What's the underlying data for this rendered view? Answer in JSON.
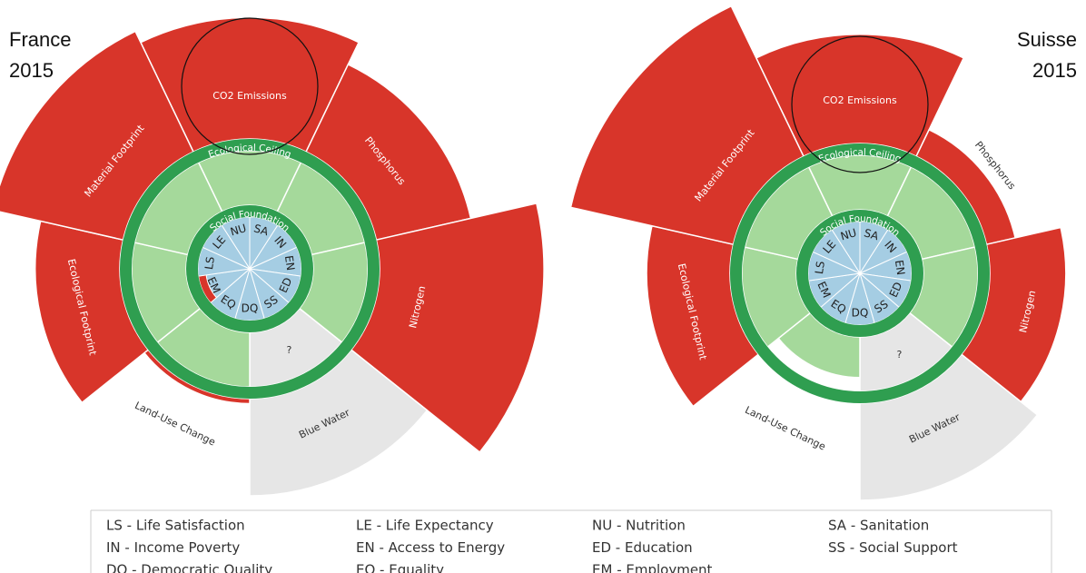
{
  "chart_data": [
    {
      "type": "doughnut",
      "title": "France",
      "subtitle": "2015",
      "ceiling_label": "Ecological Ceiling",
      "foundation_label": "Social Foundation",
      "null_label": "?",
      "ecological": {
        "categories": [
          "CO2 Emissions",
          "Phosphorus",
          "Nitrogen",
          "Blue Water",
          "Land-Use Change",
          "Ecological Footprint",
          "Material Footprint"
        ],
        "values": [
          2.05,
          1.85,
          2.4,
          null,
          1.1,
          1.75,
          2.15
        ]
      },
      "social": {
        "categories": [
          "NU",
          "SA",
          "IN",
          "EN",
          "ED",
          "SS",
          "DQ",
          "EQ",
          "EM",
          "LS",
          "LE"
        ],
        "values": [
          1,
          1,
          1,
          1,
          1,
          1,
          1,
          1,
          0.85,
          1,
          1
        ]
      },
      "colors": {
        "overshoot": "#d8352a",
        "safe": "#a5d99b",
        "ring": "#2f9e50",
        "social": "#a5cde3",
        "shortfall": "#d8352a",
        "unknown": "#e6e6e6"
      }
    },
    {
      "type": "doughnut",
      "title": "Suisse",
      "subtitle": "2015",
      "ceiling_label": "Ecological Ceiling",
      "foundation_label": "Social Foundation",
      "null_label": "?",
      "ecological": {
        "categories": [
          "CO2 Emissions",
          "Phosphorus",
          "Nitrogen",
          "Blue Water",
          "Land-Use Change",
          "Ecological Footprint",
          "Material Footprint"
        ],
        "values": [
          1.95,
          1.3,
          1.68,
          null,
          0.85,
          1.74,
          2.42
        ]
      },
      "social": {
        "categories": [
          "NU",
          "SA",
          "IN",
          "EN",
          "ED",
          "SS",
          "DQ",
          "EQ",
          "EM",
          "LS",
          "LE"
        ],
        "values": [
          1,
          1,
          1,
          1,
          1,
          1,
          1,
          1,
          1,
          1,
          1
        ]
      },
      "colors": {
        "overshoot": "#d8352a",
        "safe": "#a5d99b",
        "ring": "#2f9e50",
        "social": "#a5cde3",
        "shortfall": "#d8352a",
        "unknown": "#e6e6e6"
      }
    }
  ],
  "legend": [
    "LS - Life Satisfaction",
    "LE - Life Expectancy",
    "NU - Nutrition",
    "SA - Sanitation",
    "IN - Income Poverty",
    "EN - Access to Energy",
    "ED - Education",
    "SS - Social Support",
    "DQ - Democratic Quality",
    "EQ - Equality",
    "EM - Employment"
  ]
}
